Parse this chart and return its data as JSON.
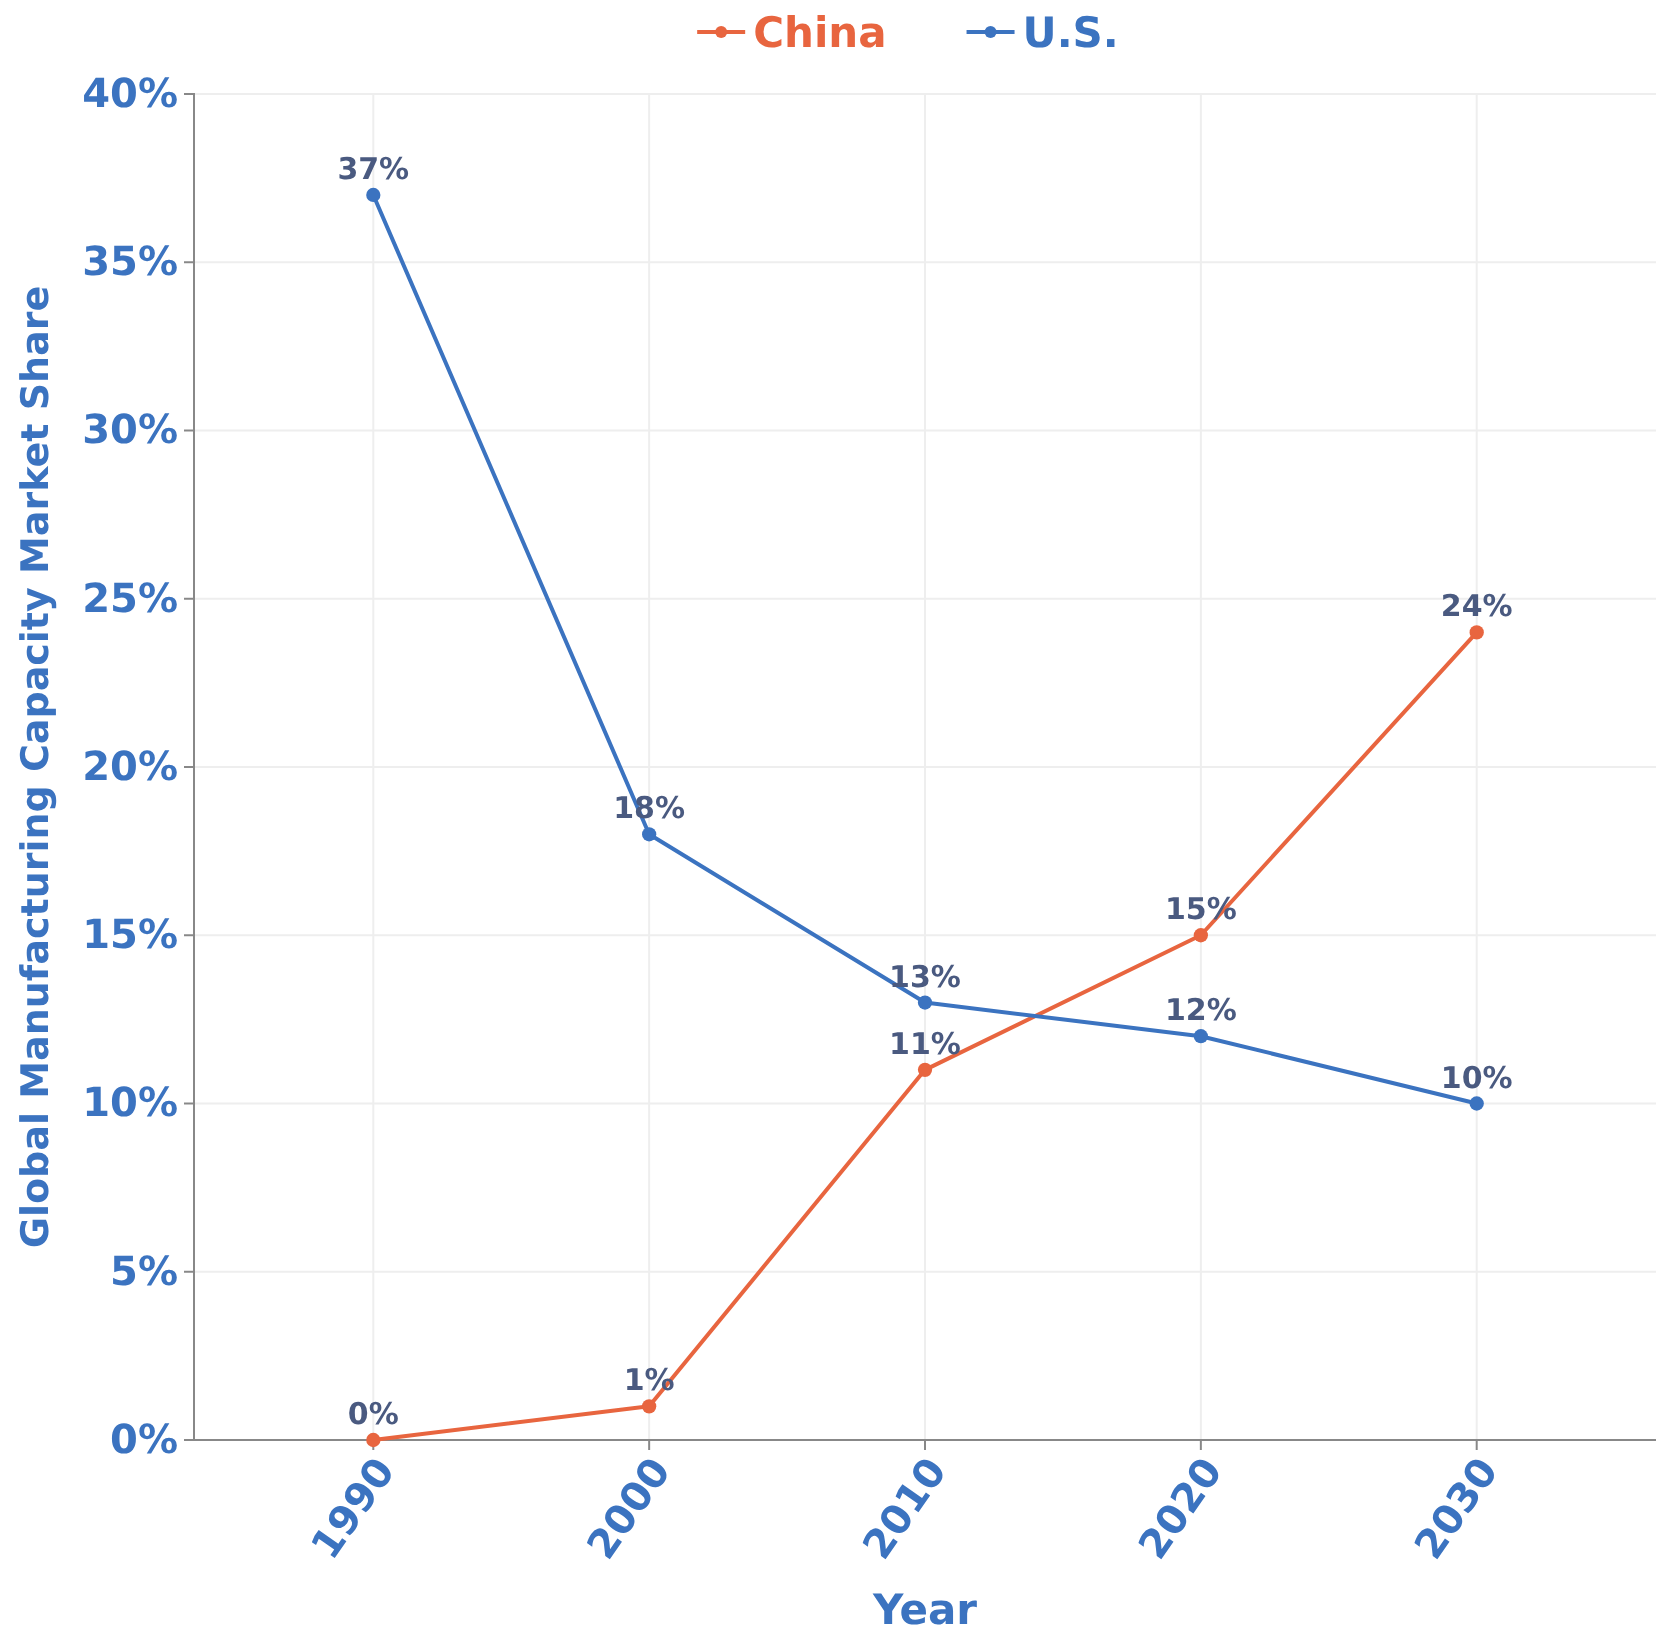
{
  "chart_data": {
    "type": "line",
    "xlabel": "Year",
    "ylabel": "Global Manufacturing Capacity Market Share",
    "categories": [
      "1990",
      "2000",
      "2010",
      "2020",
      "2030"
    ],
    "series": [
      {
        "name": "China",
        "color": "#e8653f",
        "values": [
          0,
          1,
          11,
          15,
          24
        ],
        "value_labels": [
          "0%",
          "1%",
          "11%",
          "15%",
          "24%"
        ]
      },
      {
        "name": "U.S.",
        "color": "#3b73c0",
        "values": [
          37,
          18,
          13,
          12,
          10
        ],
        "value_labels": [
          "37%",
          "18%",
          "13%",
          "12%",
          "10%"
        ]
      }
    ],
    "ylim": [
      0,
      40
    ],
    "yticks": [
      {
        "value": 0,
        "label": "0%"
      },
      {
        "value": 5,
        "label": "5%"
      },
      {
        "value": 10,
        "label": "10%"
      },
      {
        "value": 15,
        "label": "15%"
      },
      {
        "value": 20,
        "label": "20%"
      },
      {
        "value": 25,
        "label": "25%"
      },
      {
        "value": 30,
        "label": "30%"
      },
      {
        "value": 35,
        "label": "35%"
      },
      {
        "value": 40,
        "label": "40%"
      }
    ],
    "grid": true,
    "legend": "top",
    "marker": "circle",
    "line_style": "solid"
  }
}
